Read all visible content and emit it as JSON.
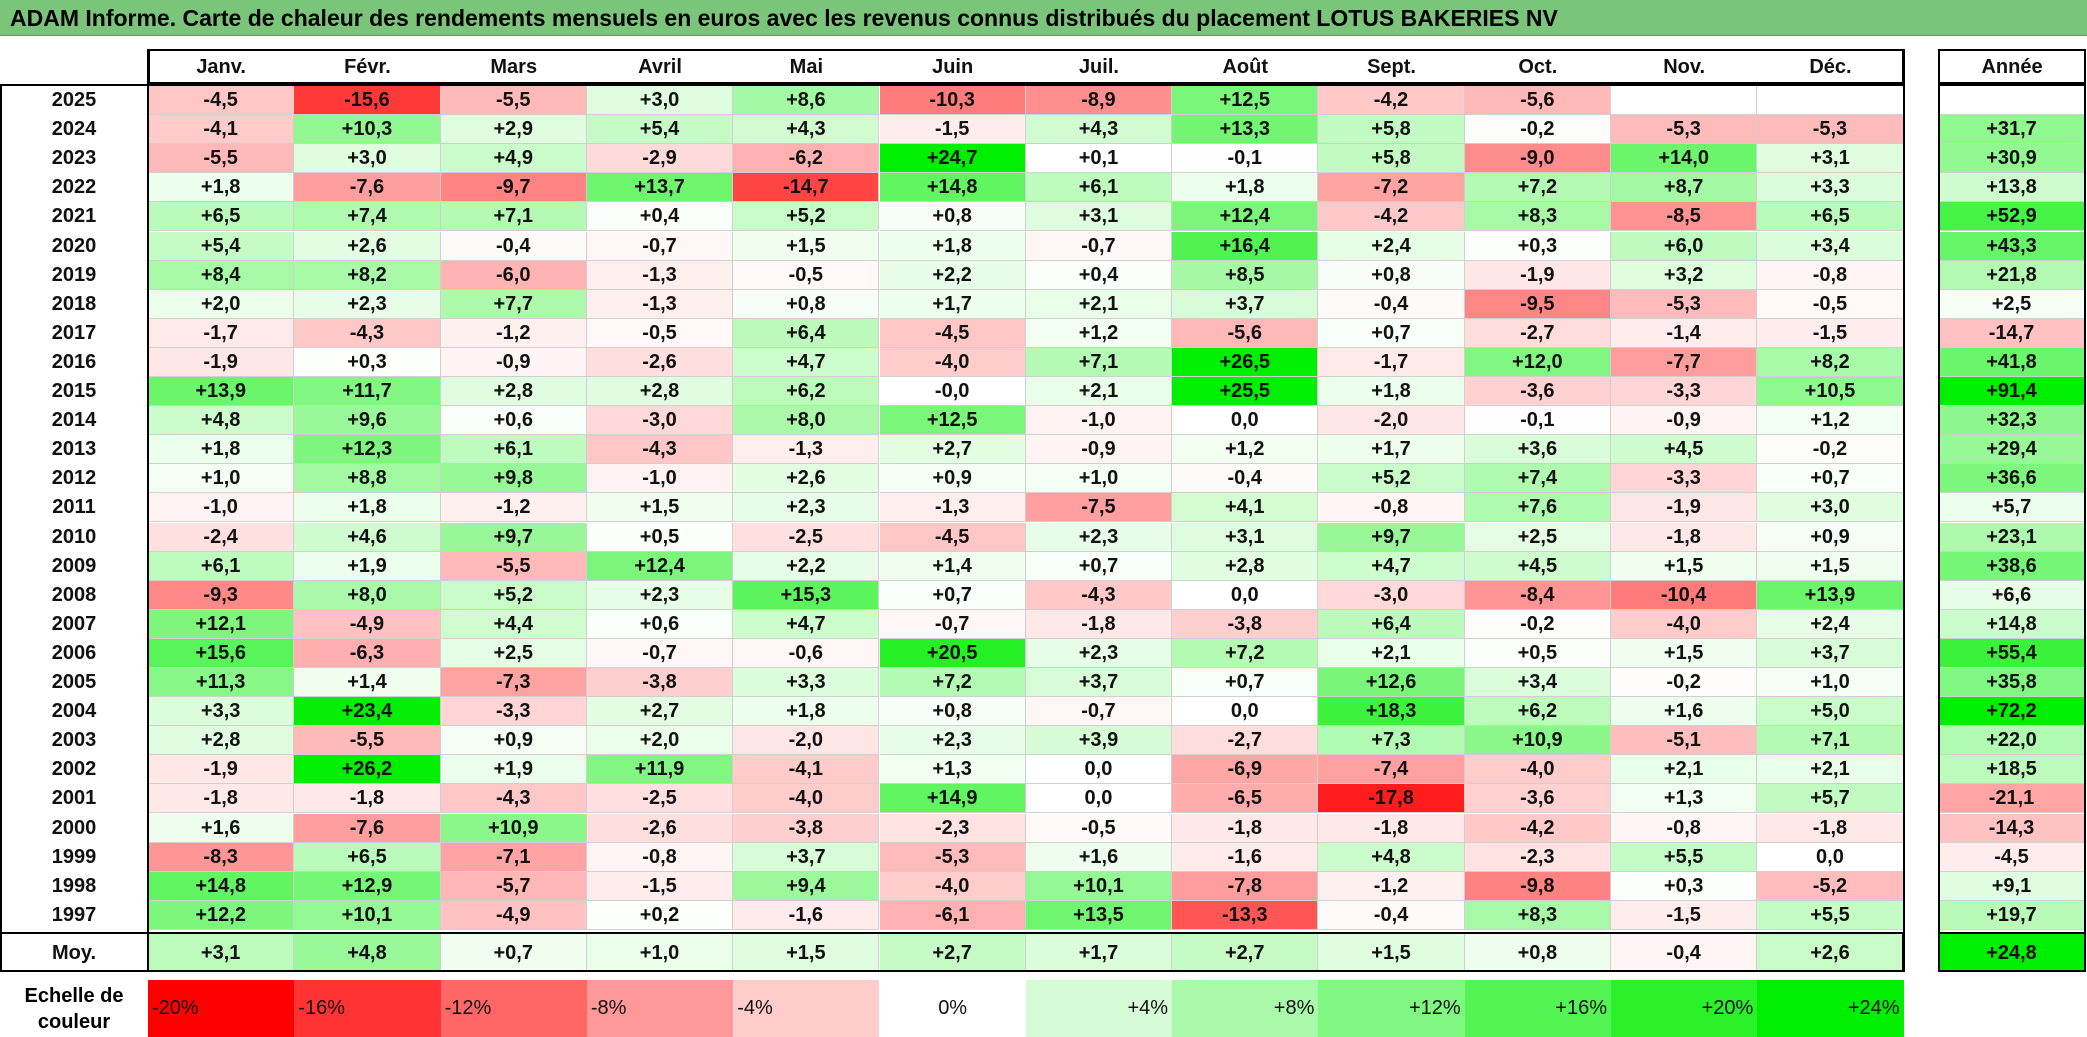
{
  "title": "ADAM Informe. Carte de chaleur des rendements mensuels en euros avec les revenus connus distribués du placement LOTUS BAKERIES NV",
  "chart_data": {
    "type": "heatmap",
    "months": [
      "Janv.",
      "Févr.",
      "Mars",
      "Avril",
      "Mai",
      "Juin",
      "Juil.",
      "Août",
      "Sept.",
      "Oct.",
      "Nov.",
      "Déc."
    ],
    "annual_header": "Année",
    "rows": [
      {
        "year": "2025",
        "values": [
          "-4,5",
          "-15,6",
          "-5,5",
          "+3,0",
          "+8,6",
          "-10,3",
          "-8,9",
          "+12,5",
          "-4,2",
          "-5,6",
          "",
          ""
        ],
        "annual": ""
      },
      {
        "year": "2024",
        "values": [
          "-4,1",
          "+10,3",
          "+2,9",
          "+5,4",
          "+4,3",
          "-1,5",
          "+4,3",
          "+13,3",
          "+5,8",
          "-0,2",
          "-5,3",
          "-5,3"
        ],
        "annual": "+31,7"
      },
      {
        "year": "2023",
        "values": [
          "-5,5",
          "+3,0",
          "+4,9",
          "-2,9",
          "-6,2",
          "+24,7",
          "+0,1",
          "-0,1",
          "+5,8",
          "-9,0",
          "+14,0",
          "+3,1"
        ],
        "annual": "+30,9"
      },
      {
        "year": "2022",
        "values": [
          "+1,8",
          "-7,6",
          "-9,7",
          "+13,7",
          "-14,7",
          "+14,8",
          "+6,1",
          "+1,8",
          "-7,2",
          "+7,2",
          "+8,7",
          "+3,3"
        ],
        "annual": "+13,8"
      },
      {
        "year": "2021",
        "values": [
          "+6,5",
          "+7,4",
          "+7,1",
          "+0,4",
          "+5,2",
          "+0,8",
          "+3,1",
          "+12,4",
          "-4,2",
          "+8,3",
          "-8,5",
          "+6,5"
        ],
        "annual": "+52,9"
      },
      {
        "year": "2020",
        "values": [
          "+5,4",
          "+2,6",
          "-0,4",
          "-0,7",
          "+1,5",
          "+1,8",
          "-0,7",
          "+16,4",
          "+2,4",
          "+0,3",
          "+6,0",
          "+3,4"
        ],
        "annual": "+43,3"
      },
      {
        "year": "2019",
        "values": [
          "+8,4",
          "+8,2",
          "-6,0",
          "-1,3",
          "-0,5",
          "+2,2",
          "+0,4",
          "+8,5",
          "+0,8",
          "-1,9",
          "+3,2",
          "-0,8"
        ],
        "annual": "+21,8"
      },
      {
        "year": "2018",
        "values": [
          "+2,0",
          "+2,3",
          "+7,7",
          "-1,3",
          "+0,8",
          "+1,7",
          "+2,1",
          "+3,7",
          "-0,4",
          "-9,5",
          "-5,3",
          "-0,5"
        ],
        "annual": "+2,5"
      },
      {
        "year": "2017",
        "values": [
          "-1,7",
          "-4,3",
          "-1,2",
          "-0,5",
          "+6,4",
          "-4,5",
          "+1,2",
          "-5,6",
          "+0,7",
          "-2,7",
          "-1,4",
          "-1,5"
        ],
        "annual": "-14,7"
      },
      {
        "year": "2016",
        "values": [
          "-1,9",
          "+0,3",
          "-0,9",
          "-2,6",
          "+4,7",
          "-4,0",
          "+7,1",
          "+26,5",
          "-1,7",
          "+12,0",
          "-7,7",
          "+8,2"
        ],
        "annual": "+41,8"
      },
      {
        "year": "2015",
        "values": [
          "+13,9",
          "+11,7",
          "+2,8",
          "+2,8",
          "+6,2",
          "-0,0",
          "+2,1",
          "+25,5",
          "+1,8",
          "-3,6",
          "-3,3",
          "+10,5"
        ],
        "annual": "+91,4"
      },
      {
        "year": "2014",
        "values": [
          "+4,8",
          "+9,6",
          "+0,6",
          "-3,0",
          "+8,0",
          "+12,5",
          "-1,0",
          "0,0",
          "-2,0",
          "-0,1",
          "-0,9",
          "+1,2"
        ],
        "annual": "+32,3"
      },
      {
        "year": "2013",
        "values": [
          "+1,8",
          "+12,3",
          "+6,1",
          "-4,3",
          "-1,3",
          "+2,7",
          "-0,9",
          "+1,2",
          "+1,7",
          "+3,6",
          "+4,5",
          "-0,2"
        ],
        "annual": "+29,4"
      },
      {
        "year": "2012",
        "values": [
          "+1,0",
          "+8,8",
          "+9,8",
          "-1,0",
          "+2,6",
          "+0,9",
          "+1,0",
          "-0,4",
          "+5,2",
          "+7,4",
          "-3,3",
          "+0,7"
        ],
        "annual": "+36,6"
      },
      {
        "year": "2011",
        "values": [
          "-1,0",
          "+1,8",
          "-1,2",
          "+1,5",
          "+2,3",
          "-1,3",
          "-7,5",
          "+4,1",
          "-0,8",
          "+7,6",
          "-1,9",
          "+3,0"
        ],
        "annual": "+5,7"
      },
      {
        "year": "2010",
        "values": [
          "-2,4",
          "+4,6",
          "+9,7",
          "+0,5",
          "-2,5",
          "-4,5",
          "+2,3",
          "+3,1",
          "+9,7",
          "+2,5",
          "-1,8",
          "+0,9"
        ],
        "annual": "+23,1"
      },
      {
        "year": "2009",
        "values": [
          "+6,1",
          "+1,9",
          "-5,5",
          "+12,4",
          "+2,2",
          "+1,4",
          "+0,7",
          "+2,8",
          "+4,7",
          "+4,5",
          "+1,5",
          "+1,5"
        ],
        "annual": "+38,6"
      },
      {
        "year": "2008",
        "values": [
          "-9,3",
          "+8,0",
          "+5,2",
          "+2,3",
          "+15,3",
          "+0,7",
          "-4,3",
          "0,0",
          "-3,0",
          "-8,4",
          "-10,4",
          "+13,9"
        ],
        "annual": "+6,6"
      },
      {
        "year": "2007",
        "values": [
          "+12,1",
          "-4,9",
          "+4,4",
          "+0,6",
          "+4,7",
          "-0,7",
          "-1,8",
          "-3,8",
          "+6,4",
          "-0,2",
          "-4,0",
          "+2,4"
        ],
        "annual": "+14,8"
      },
      {
        "year": "2006",
        "values": [
          "+15,6",
          "-6,3",
          "+2,5",
          "-0,7",
          "-0,6",
          "+20,5",
          "+2,3",
          "+7,2",
          "+2,1",
          "+0,5",
          "+1,5",
          "+3,7"
        ],
        "annual": "+55,4"
      },
      {
        "year": "2005",
        "values": [
          "+11,3",
          "+1,4",
          "-7,3",
          "-3,8",
          "+3,3",
          "+7,2",
          "+3,7",
          "+0,7",
          "+12,6",
          "+3,4",
          "-0,2",
          "+1,0"
        ],
        "annual": "+35,8"
      },
      {
        "year": "2004",
        "values": [
          "+3,3",
          "+23,4",
          "-3,3",
          "+2,7",
          "+1,8",
          "+0,8",
          "-0,7",
          "0,0",
          "+18,3",
          "+6,2",
          "+1,6",
          "+5,0"
        ],
        "annual": "+72,2"
      },
      {
        "year": "2003",
        "values": [
          "+2,8",
          "-5,5",
          "+0,9",
          "+2,0",
          "-2,0",
          "+2,3",
          "+3,9",
          "-2,7",
          "+7,3",
          "+10,9",
          "-5,1",
          "+7,1"
        ],
        "annual": "+22,0"
      },
      {
        "year": "2002",
        "values": [
          "-1,9",
          "+26,2",
          "+1,9",
          "+11,9",
          "-4,1",
          "+1,3",
          "0,0",
          "-6,9",
          "-7,4",
          "-4,0",
          "+2,1",
          "+2,1"
        ],
        "annual": "+18,5"
      },
      {
        "year": "2001",
        "values": [
          "-1,8",
          "-1,8",
          "-4,3",
          "-2,5",
          "-4,0",
          "+14,9",
          "0,0",
          "-6,5",
          "-17,8",
          "-3,6",
          "+1,3",
          "+5,7"
        ],
        "annual": "-21,1"
      },
      {
        "year": "2000",
        "values": [
          "+1,6",
          "-7,6",
          "+10,9",
          "-2,6",
          "-3,8",
          "-2,3",
          "-0,5",
          "-1,8",
          "-1,8",
          "-4,2",
          "-0,8",
          "-1,8"
        ],
        "annual": "-14,3"
      },
      {
        "year": "1999",
        "values": [
          "-8,3",
          "+6,5",
          "-7,1",
          "-0,8",
          "+3,7",
          "-5,3",
          "+1,6",
          "-1,6",
          "+4,8",
          "-2,3",
          "+5,5",
          "0,0"
        ],
        "annual": "-4,5"
      },
      {
        "year": "1998",
        "values": [
          "+14,8",
          "+12,9",
          "-5,7",
          "-1,5",
          "+9,4",
          "-4,0",
          "+10,1",
          "-7,8",
          "-1,2",
          "-9,8",
          "+0,3",
          "-5,2"
        ],
        "annual": "+9,1"
      },
      {
        "year": "1997",
        "values": [
          "+12,2",
          "+10,1",
          "-4,9",
          "+0,2",
          "-1,6",
          "-6,1",
          "+13,5",
          "-13,3",
          "-0,4",
          "+8,3",
          "-1,5",
          "+5,5"
        ],
        "annual": "+19,7"
      }
    ],
    "average": {
      "label": "Moy.",
      "values": [
        "+3,1",
        "+4,8",
        "+0,7",
        "+1,0",
        "+1,5",
        "+2,7",
        "+1,7",
        "+2,7",
        "+1,5",
        "+0,8",
        "-0,4",
        "+2,6"
      ],
      "annual": "+24,8"
    },
    "scale": {
      "label": "Echelle de couleur",
      "items": [
        {
          "text": "-20%",
          "value": -20
        },
        {
          "text": "-16%",
          "value": -16
        },
        {
          "text": "-12%",
          "value": -12
        },
        {
          "text": "-8%",
          "value": -8
        },
        {
          "text": "-4%",
          "value": -4
        },
        {
          "text": "0%",
          "value": 0
        },
        {
          "text": "+4%",
          "value": 4
        },
        {
          "text": "+8%",
          "value": 8
        },
        {
          "text": "+12%",
          "value": 12
        },
        {
          "text": "+16%",
          "value": 16
        },
        {
          "text": "+20%",
          "value": 20
        },
        {
          "text": "+24%",
          "value": 24
        }
      ]
    },
    "colors": {
      "negative": "#ff0000",
      "zero": "#ffffff",
      "positive": "#00ee00",
      "title_bar": "#7ac57a"
    }
  }
}
